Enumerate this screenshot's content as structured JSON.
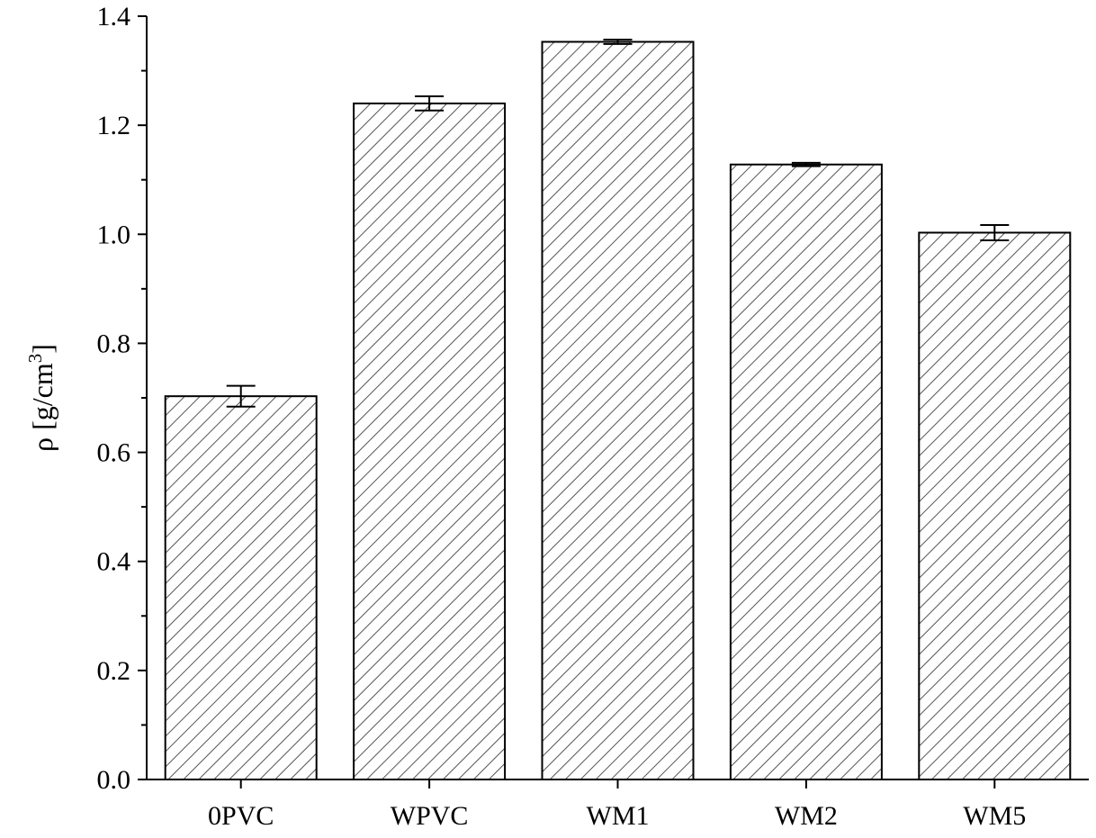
{
  "chart_data": {
    "type": "bar",
    "categories": [
      "0PVC",
      "WPVC",
      "WM1",
      "WM2",
      "WM5"
    ],
    "values": [
      0.703,
      1.24,
      1.353,
      1.128,
      1.003
    ],
    "errors": [
      0.019,
      0.013,
      0.004,
      0.003,
      0.014
    ],
    "title": "",
    "xlabel": "",
    "ylabel": "ρ [g/cm",
    "ylabel_superscript": "3",
    "ylabel_suffix": "]",
    "ylim": [
      0.0,
      1.4
    ],
    "yticks": [
      "0.0",
      "0.2",
      "0.4",
      "0.6",
      "0.8",
      "1.0",
      "1.2",
      "1.4"
    ],
    "grid": false,
    "bar_fill": "diagonal-hatch",
    "colors": {
      "bar_edge": "#000000",
      "hatch": "#555555",
      "background": "#ffffff"
    }
  }
}
